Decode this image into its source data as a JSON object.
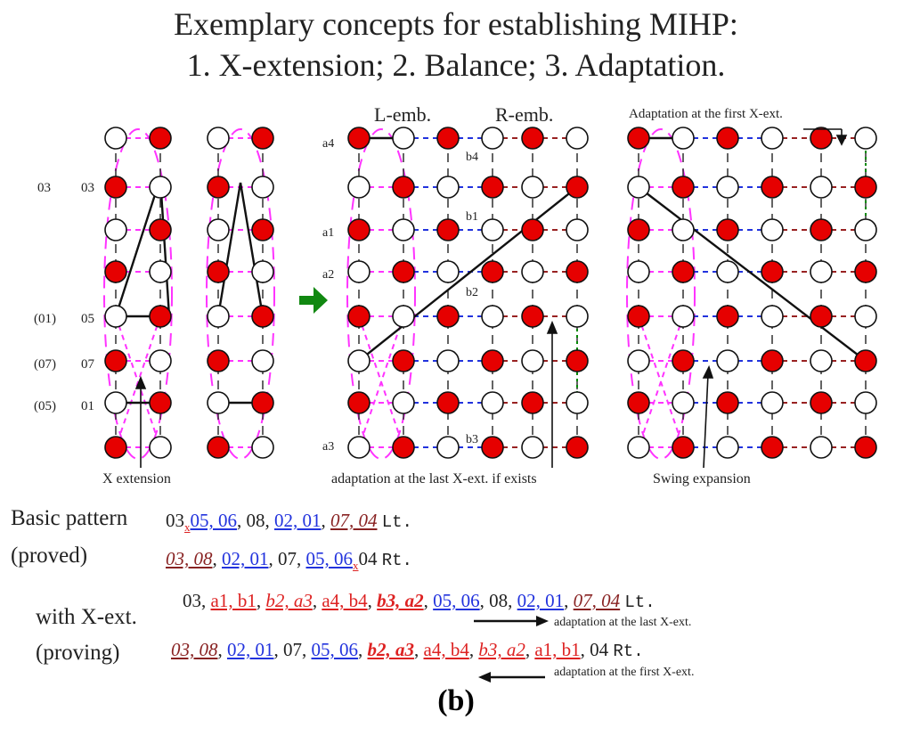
{
  "title": {
    "line1": "Exemplary concepts for establishing MIHP:",
    "line2": "1. X-extension; 2. Balance; 3. Adaptation."
  },
  "labels": {
    "l_emb": "L-emb.",
    "r_emb": "R-emb.",
    "adapt_first": "Adaptation at the first X-ext.",
    "x_extension": "X extension",
    "adapt_last_exists": "adaptation at the last X-ext. if exists",
    "swing": "Swing expansion",
    "row_left": [
      "03",
      "(01)",
      "(07)",
      "(05)"
    ],
    "row_right": [
      "03",
      "05",
      "07",
      "01"
    ],
    "mid_left": [
      "a4",
      "a1",
      "a2",
      "a3"
    ],
    "mid_b": [
      "b4",
      "b1",
      "b2",
      "b3"
    ]
  },
  "sequences": {
    "basic_label": "Basic pattern",
    "proved_label": "(proved)",
    "with_label": "with X-ext.",
    "proving_label": "(proving)",
    "line1": [
      "03",
      "x",
      "05, 06",
      ", 08, ",
      "02, 01",
      ", ",
      "07, 04",
      "Lt."
    ],
    "line2": [
      "03, 08",
      ", ",
      "02, 01",
      ", 07, ",
      "05, 06",
      "x",
      "04",
      "Rt."
    ],
    "line3": [
      "03, ",
      "a1, b1",
      ", ",
      "b2, a3",
      ", ",
      "a4, b4",
      ", ",
      "b3, a2",
      ", ",
      "05, 06",
      ", 08, ",
      "02, 01",
      ", ",
      "07, 04",
      "Lt."
    ],
    "line4": [
      "03, 08",
      ", ",
      "02, 01",
      ", 07, ",
      "05, 06",
      ", ",
      "b2, a3",
      ", ",
      "a4, b4",
      ", ",
      "b3, a2",
      ", ",
      "a1, b1",
      ", 04",
      "Rt."
    ],
    "adapt_last": "adaptation at the last X-ext.",
    "adapt_first": "adaptation at the first X-ext."
  },
  "caption": "(b)",
  "colors": {
    "red": "#e60000",
    "magenta": "#ff33ff",
    "blue": "#2233dd",
    "darkred": "#992222",
    "green": "#008800",
    "arrow_green": "#118811"
  }
}
